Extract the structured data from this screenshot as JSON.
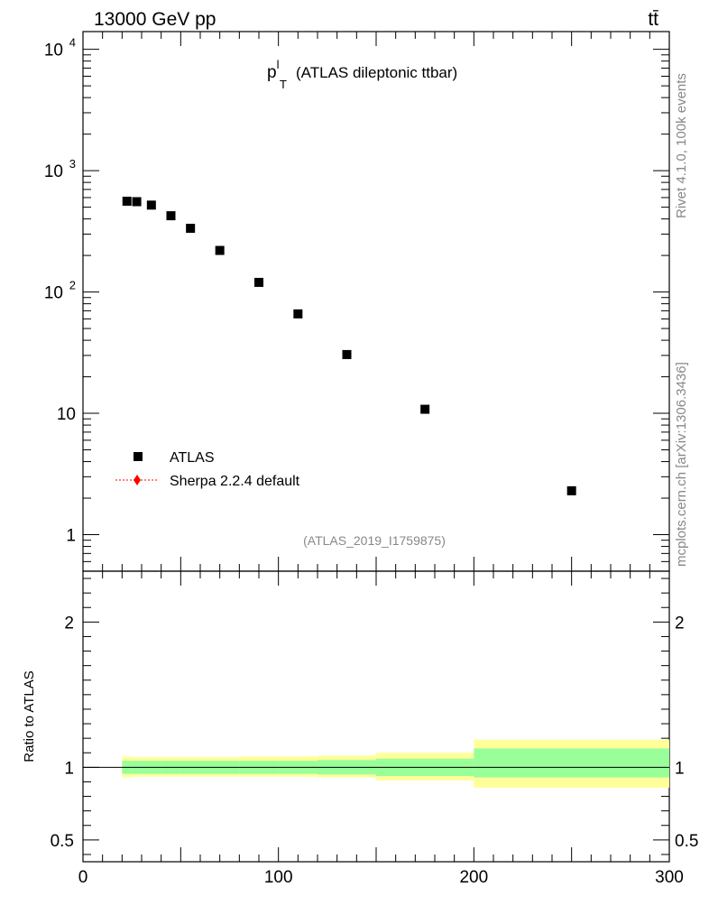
{
  "header": {
    "energy_label": "13000 GeV pp",
    "process_label": "tt̄"
  },
  "title": {
    "main": "p",
    "sup": "l",
    "sub": "T",
    "rest": "(ATLAS dileptonic ttbar)"
  },
  "analysis_id": "(ATLAS_2019_I1759875)",
  "side_text": {
    "rivet": "Rivet 4.1.0,  100k events",
    "mcplots": "mcplots.cern.ch [arXiv:1306.3436]"
  },
  "legend": {
    "atlas": "ATLAS",
    "sherpa": "Sherpa 2.2.4 default"
  },
  "colors": {
    "data_marker": "#000000",
    "mc_line": "#ff0000",
    "band_inner": "#99ff99",
    "band_outer": "#ffff99"
  },
  "chart_data": [
    {
      "type": "scatter",
      "panel": "main",
      "scale": "log",
      "xlim": [
        0,
        300
      ],
      "ylim": [
        0.5,
        14000
      ],
      "y_ticks": [
        {
          "value": 10000,
          "label": "10",
          "exp": "4"
        },
        {
          "value": 1000,
          "label": "10",
          "exp": "3"
        },
        {
          "value": 100,
          "label": "10",
          "exp": "2"
        },
        {
          "value": 10,
          "label": "10",
          "exp": ""
        },
        {
          "value": 1,
          "label": "1",
          "exp": ""
        }
      ],
      "series": [
        {
          "name": "ATLAS",
          "x": [
            22.5,
            27.5,
            35,
            45,
            55,
            70,
            90,
            110,
            135,
            175,
            250
          ],
          "y": [
            560,
            555,
            520,
            425,
            335,
            220,
            120,
            66,
            30.5,
            10.8,
            2.3
          ]
        }
      ]
    },
    {
      "type": "area",
      "panel": "ratio",
      "xlim": [
        0,
        300
      ],
      "ylim": [
        0.35,
        2.35
      ],
      "ylabel": "Ratio to ATLAS",
      "y_ticks": [
        {
          "value": 0.5,
          "label": "0.5"
        },
        {
          "value": 1,
          "label": "1"
        },
        {
          "value": 2,
          "label": "2"
        }
      ],
      "x_ticks": [
        {
          "value": 0,
          "label": "0"
        },
        {
          "value": 100,
          "label": "100"
        },
        {
          "value": 200,
          "label": "200"
        },
        {
          "value": 300,
          "label": "300"
        }
      ],
      "bins": [
        {
          "lo": 20,
          "hi": 25,
          "inner": [
            0.955,
            1.045
          ],
          "outer": [
            0.93,
            1.075
          ]
        },
        {
          "lo": 25,
          "hi": 30,
          "inner": [
            0.955,
            1.045
          ],
          "outer": [
            0.935,
            1.07
          ]
        },
        {
          "lo": 30,
          "hi": 40,
          "inner": [
            0.955,
            1.045
          ],
          "outer": [
            0.935,
            1.07
          ]
        },
        {
          "lo": 40,
          "hi": 50,
          "inner": [
            0.955,
            1.045
          ],
          "outer": [
            0.935,
            1.07
          ]
        },
        {
          "lo": 50,
          "hi": 60,
          "inner": [
            0.955,
            1.045
          ],
          "outer": [
            0.935,
            1.07
          ]
        },
        {
          "lo": 60,
          "hi": 80,
          "inner": [
            0.955,
            1.045
          ],
          "outer": [
            0.935,
            1.07
          ]
        },
        {
          "lo": 80,
          "hi": 100,
          "inner": [
            0.955,
            1.045
          ],
          "outer": [
            0.935,
            1.075
          ]
        },
        {
          "lo": 100,
          "hi": 120,
          "inner": [
            0.955,
            1.045
          ],
          "outer": [
            0.935,
            1.075
          ]
        },
        {
          "lo": 120,
          "hi": 150,
          "inner": [
            0.95,
            1.05
          ],
          "outer": [
            0.93,
            1.08
          ]
        },
        {
          "lo": 150,
          "hi": 200,
          "inner": [
            0.94,
            1.06
          ],
          "outer": [
            0.91,
            1.1
          ]
        },
        {
          "lo": 200,
          "hi": 300,
          "inner": [
            0.93,
            1.13
          ],
          "outer": [
            0.86,
            1.19
          ]
        }
      ]
    }
  ]
}
